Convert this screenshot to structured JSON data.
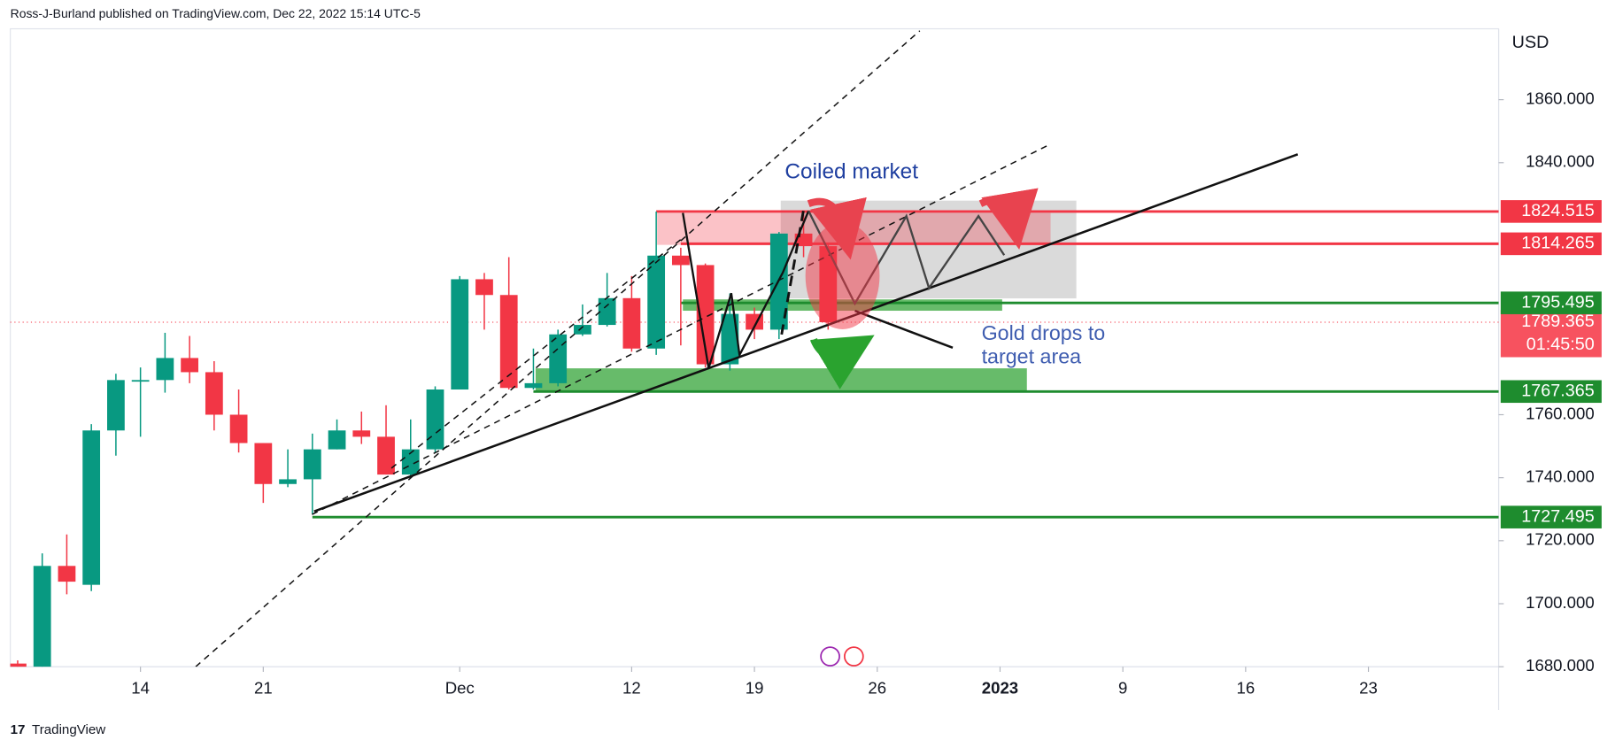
{
  "header": "Ross-J-Burland published on TradingView.com, Dec 22, 2022 15:14 UTC-5",
  "footer": "TradingView",
  "chart_data": {
    "type": "candlestick",
    "currency": "USD",
    "x": [
      -5,
      -4,
      -3,
      -2,
      -1,
      0,
      1,
      2,
      3,
      4,
      5,
      6,
      7,
      8,
      9,
      10,
      11,
      12,
      13,
      14,
      15,
      16,
      17,
      18,
      19,
      20,
      21,
      22,
      23,
      24,
      25,
      26,
      27,
      28
    ],
    "open": [
      1681,
      1676,
      1712,
      1706,
      1755,
      1770.5,
      1771,
      1778,
      1773.5,
      1760,
      1751,
      1738,
      1739.5,
      1749,
      1755,
      1753,
      1741,
      1749,
      1768,
      1803,
      1798,
      1768.5,
      1770,
      1785.5,
      1788.5,
      1797,
      1781,
      1810.5,
      1807.5,
      1776,
      1792,
      1787,
      1817.5,
      1813.5
    ],
    "high": [
      1682,
      1716,
      1722,
      1757,
      1773,
      1775,
      1786,
      1785,
      1777,
      1768,
      1751,
      1749,
      1754,
      1758.5,
      1761,
      1763,
      1758.5,
      1769,
      1804,
      1805,
      1810,
      1781,
      1787,
      1795,
      1805,
      1804,
      1824.5,
      1813,
      1808,
      1798.5,
      1794,
      1818,
      1823.5,
      1814
    ],
    "low": [
      1678,
      1673,
      1703,
      1704,
      1747,
      1753,
      1767,
      1770,
      1755,
      1748,
      1732,
      1737,
      1728.5,
      1749,
      1750.7,
      1741,
      1740,
      1748,
      1768,
      1787,
      1768,
      1768,
      1769,
      1785,
      1788,
      1780,
      1779,
      1782,
      1775,
      1774,
      1784,
      1784,
      1810,
      1787
    ],
    "close": [
      1679,
      1712,
      1707,
      1755,
      1771,
      1771,
      1778,
      1773.5,
      1760,
      1751,
      1738,
      1739.5,
      1749,
      1755,
      1753,
      1741,
      1749,
      1768,
      1803,
      1798,
      1768.5,
      1770,
      1785.5,
      1788.5,
      1797,
      1781,
      1810.5,
      1807.5,
      1776,
      1792,
      1787,
      1817.5,
      1813.5,
      1789.365
    ],
    "up_color": "#089981",
    "down_color": "#f23645",
    "xlim": [
      -5.3,
      55.3
    ],
    "xticks": [
      {
        "value": 0,
        "label": "14"
      },
      {
        "value": 5,
        "label": "21"
      },
      {
        "value": 13,
        "label": "Dec"
      },
      {
        "value": 20,
        "label": "12"
      },
      {
        "value": 25,
        "label": "19"
      },
      {
        "value": 30,
        "label": "26"
      },
      {
        "value": 35,
        "label": "2023"
      },
      {
        "value": 40,
        "label": "9"
      },
      {
        "value": 45,
        "label": "16"
      },
      {
        "value": 50,
        "label": "23"
      }
    ],
    "ylim": [
      1680,
      1882.5
    ],
    "yticks": [
      {
        "value": 1680,
        "label": "1680.000"
      },
      {
        "value": 1700,
        "label": "1700.000"
      },
      {
        "value": 1720,
        "label": "1720.000"
      },
      {
        "value": 1740,
        "label": "1740.000"
      },
      {
        "value": 1760,
        "label": "1760.000"
      },
      {
        "value": 1840,
        "label": "1840.000"
      },
      {
        "value": 1860,
        "label": "1860.000"
      }
    ],
    "levels": [
      {
        "value": 1824.515,
        "color": "#f23645",
        "from": 21
      },
      {
        "value": 1814.265,
        "color": "#f23645",
        "from": 22
      },
      {
        "value": 1795.495,
        "color": "#1e8c2e",
        "from": 22
      },
      {
        "value": 1767.365,
        "color": "#1e8c2e",
        "from": 16
      },
      {
        "value": 1727.495,
        "color": "#1e8c2e",
        "from": 7
      }
    ],
    "current": {
      "value": 1789.365,
      "countdown": "01:45:50",
      "color": "#f7525f"
    },
    "annotations": [
      "Coiled market",
      "Gold drops to",
      "target area"
    ]
  }
}
